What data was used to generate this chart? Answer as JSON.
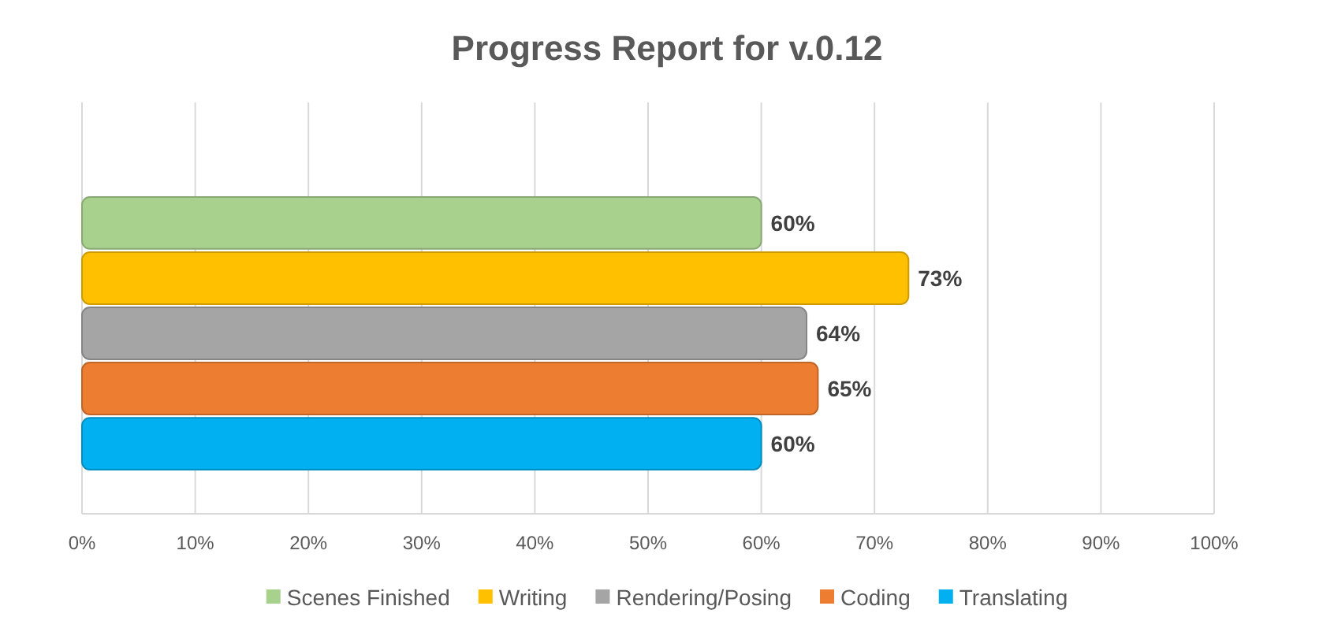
{
  "chart_data": {
    "type": "bar",
    "orientation": "horizontal",
    "title": "Progress Report for v.0.12",
    "categories": [
      null
    ],
    "series": [
      {
        "name": "Scenes Finished",
        "color": "#a9d18e",
        "values": [
          60
        ],
        "value_labels": [
          "60%"
        ]
      },
      {
        "name": "Writing",
        "color": "#ffc000",
        "values": [
          73
        ],
        "value_labels": [
          "73%"
        ]
      },
      {
        "name": "Rendering/Posing",
        "color": "#a5a5a5",
        "values": [
          64
        ],
        "value_labels": [
          "64%"
        ]
      },
      {
        "name": "Coding",
        "color": "#ed7d31",
        "values": [
          65
        ],
        "value_labels": [
          "65%"
        ]
      },
      {
        "name": "Translating",
        "color": "#00b0f0",
        "values": [
          60
        ],
        "value_labels": [
          "60%"
        ]
      }
    ],
    "xlim": [
      0,
      100
    ],
    "xticks": [
      {
        "value": 0,
        "label": "0%"
      },
      {
        "value": 10,
        "label": "10%"
      },
      {
        "value": 20,
        "label": "20%"
      },
      {
        "value": 30,
        "label": "30%"
      },
      {
        "value": 40,
        "label": "40%"
      },
      {
        "value": 50,
        "label": "50%"
      },
      {
        "value": 60,
        "label": "60%"
      },
      {
        "value": 70,
        "label": "70%"
      },
      {
        "value": 80,
        "label": "80%"
      },
      {
        "value": 90,
        "label": "90%"
      },
      {
        "value": 100,
        "label": "100%"
      }
    ],
    "grid": "x",
    "legend": "bottom"
  }
}
